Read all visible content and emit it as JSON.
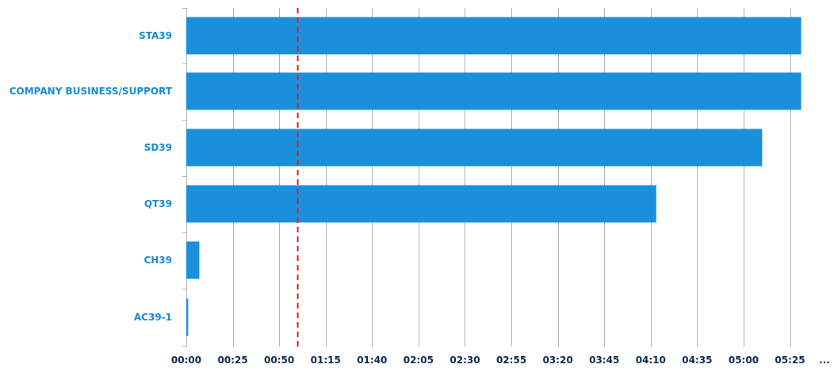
{
  "chart_data": {
    "type": "bar",
    "orientation": "horizontal",
    "categories": [
      "STA39",
      "COMPANY BUSINESS/SUPPORT",
      "SD39",
      "QT39",
      "CH39",
      "AC39-1"
    ],
    "values": [
      331,
      331,
      310,
      253,
      7,
      1
    ],
    "value_unit": "minutes (mm:ss axis)",
    "x_ticks": [
      {
        "value": 0,
        "label": "00:00"
      },
      {
        "value": 25,
        "label": "00:25"
      },
      {
        "value": 50,
        "label": "00:50"
      },
      {
        "value": 75,
        "label": "01:15"
      },
      {
        "value": 100,
        "label": "01:40"
      },
      {
        "value": 125,
        "label": "02:05"
      },
      {
        "value": 150,
        "label": "02:30"
      },
      {
        "value": 175,
        "label": "02:55"
      },
      {
        "value": 200,
        "label": "03:20"
      },
      {
        "value": 225,
        "label": "03:45"
      },
      {
        "value": 250,
        "label": "04:10"
      },
      {
        "value": 275,
        "label": "04:35"
      },
      {
        "value": 300,
        "label": "05:00"
      },
      {
        "value": 325,
        "label": "05:25"
      }
    ],
    "x_more_label": "...",
    "xlim": [
      0,
      338
    ],
    "reference_line": {
      "value": 60,
      "style": "dashed",
      "color": "#e0211d"
    },
    "title": "",
    "xlabel": "",
    "ylabel": "",
    "grid": "vertical",
    "bar_color": "#1a90dc",
    "category_label_color": "#1a8ad8",
    "tick_label_color": "#0c2a52"
  }
}
